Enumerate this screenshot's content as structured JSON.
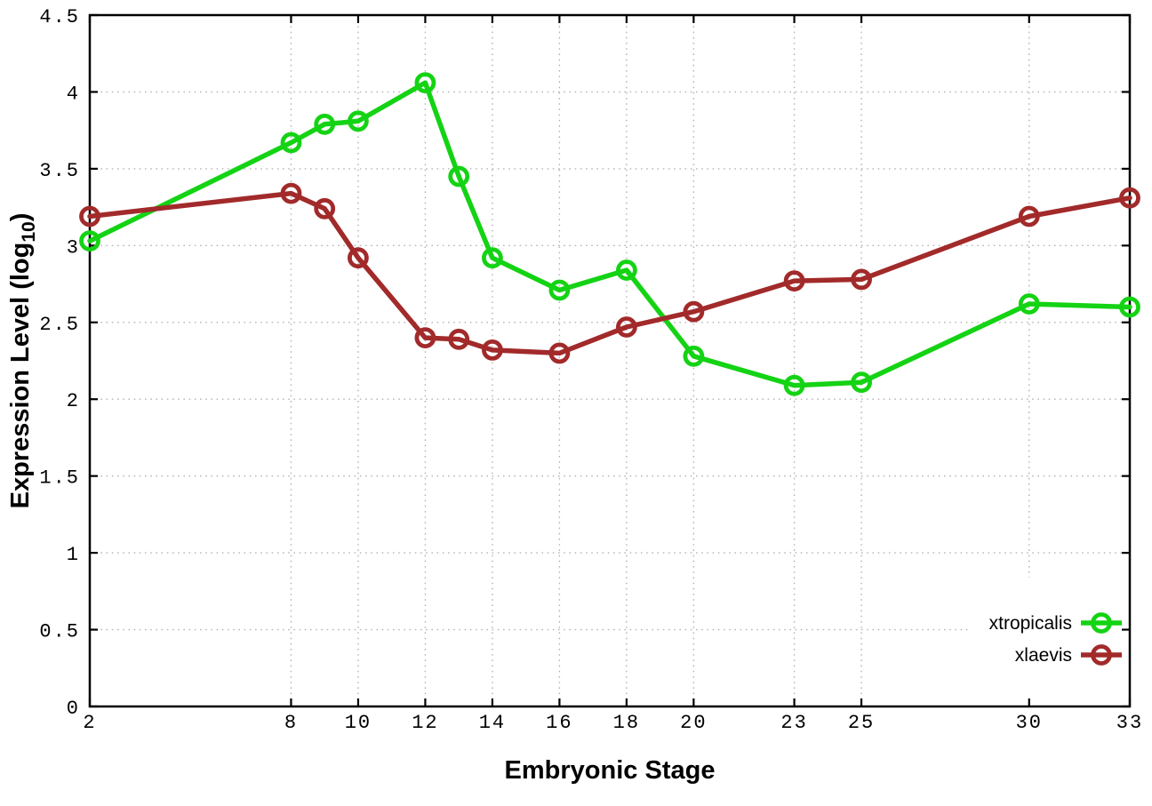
{
  "chart_data": {
    "type": "line",
    "title": "",
    "xlabel": "Embryonic Stage",
    "ylabel": "Expression Level (log10)",
    "ylabel_parts": {
      "main": "Expression Level (log",
      "sub": "10",
      "end": ")"
    },
    "x": [
      2,
      8,
      9,
      10,
      12,
      13,
      14,
      16,
      18,
      20,
      23,
      25,
      30,
      33
    ],
    "series": [
      {
        "name": "xtropicalis",
        "color": "#14d314",
        "marker": "open-circle",
        "values": [
          3.03,
          3.67,
          3.79,
          3.81,
          4.06,
          3.45,
          2.92,
          2.71,
          2.84,
          2.28,
          2.09,
          2.11,
          2.62,
          2.6
        ]
      },
      {
        "name": "xlaevis",
        "color": "#a22a2a",
        "marker": "open-circle",
        "values": [
          3.19,
          3.34,
          3.24,
          2.92,
          2.4,
          2.39,
          2.32,
          2.3,
          2.47,
          2.57,
          2.77,
          2.78,
          3.19,
          3.31
        ]
      }
    ],
    "xlim": [
      2,
      33
    ],
    "ylim": [
      0,
      4.5
    ],
    "xticks": [
      2,
      8,
      10,
      12,
      14,
      16,
      18,
      20,
      23,
      25,
      30,
      33
    ],
    "xtick_labels": [
      "2",
      "8",
      "10",
      "12",
      "14",
      "16",
      "18",
      "20",
      "23",
      "25",
      "30",
      "33"
    ],
    "yticks": [
      0,
      0.5,
      1,
      1.5,
      2,
      2.5,
      3,
      3.5,
      4,
      4.5
    ],
    "ytick_labels": [
      "0",
      "0.5",
      "1",
      "1.5",
      "2",
      "2.5",
      "3",
      "3.5",
      "4",
      "4.5"
    ],
    "grid": true,
    "grid_color": "#b4b4b4",
    "axis_color": "#000000",
    "background_color": "#ffffff",
    "legend_position": "bottom-right",
    "legend_entries": [
      "xtropicalis",
      "xlaevis"
    ]
  }
}
